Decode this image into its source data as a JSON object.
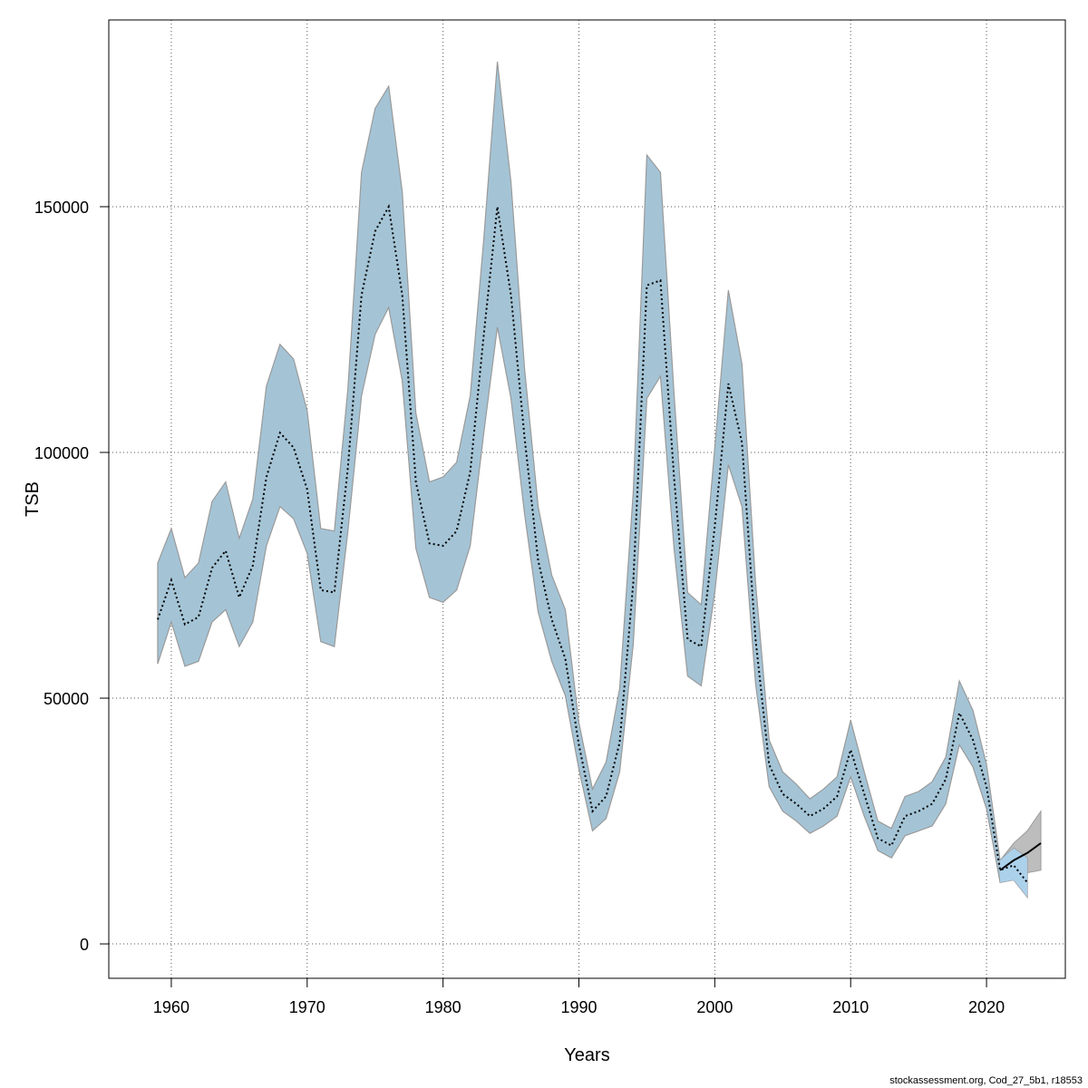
{
  "chart_data": {
    "type": "area",
    "xlabel": "Years",
    "ylabel": "TSB",
    "xlim": [
      1955.4,
      2025.8
    ],
    "ylim": [
      -7000,
      188000
    ],
    "xticks": [
      1960,
      1970,
      1980,
      1990,
      2000,
      2010,
      2020
    ],
    "yticks": [
      0,
      50000,
      100000,
      150000
    ],
    "ytick_labels": [
      "0",
      "50000",
      "100000",
      "150000"
    ],
    "grid": true,
    "colors": {
      "band_blue": "#a4c4d6",
      "band_grey": "#bdbdbd",
      "band_edge": "#9a9a9a",
      "line": "#000000",
      "light_blue": "#aed4ee"
    },
    "series": [
      {
        "x": [
          1959,
          1960,
          1961,
          1962,
          1963,
          1964,
          1965,
          1966,
          1967,
          1968,
          1969,
          1970,
          1971,
          1972,
          1973,
          1974,
          1975,
          1976,
          1977,
          1978,
          1979,
          1980,
          1981,
          1982,
          1983,
          1984,
          1985,
          1986,
          1987,
          1988,
          1989,
          1990,
          1991,
          1992,
          1993,
          1994,
          1995,
          1996,
          1997,
          1998,
          1999,
          2000,
          2001,
          2002,
          2003,
          2004,
          2005,
          2006,
          2007,
          2008,
          2009,
          2010,
          2011,
          2012,
          2013,
          2014,
          2015,
          2016,
          2017,
          2018,
          2019,
          2020,
          2021,
          2022,
          2023
        ],
        "estimate": [
          66000,
          74000,
          65000,
          66500,
          76500,
          80000,
          70500,
          77000,
          95000,
          104000,
          101000,
          92500,
          72000,
          71500,
          97000,
          132000,
          145000,
          150000,
          132000,
          94000,
          81500,
          81000,
          84000,
          96000,
          124000,
          150000,
          132000,
          103000,
          78000,
          66000,
          58000,
          40500,
          27000,
          30000,
          41000,
          73500,
          134000,
          135000,
          95000,
          62000,
          60500,
          85000,
          114000,
          102000,
          62000,
          36500,
          30500,
          28500,
          26000,
          27500,
          30000,
          39500,
          30500,
          21500,
          20000,
          26000,
          27000,
          28500,
          33500,
          47000,
          41500,
          32000,
          15000,
          16000,
          12500
        ],
        "upper": [
          77500,
          84500,
          74500,
          77500,
          90000,
          94000,
          82500,
          90500,
          113500,
          122000,
          119000,
          108500,
          84500,
          84000,
          113000,
          157000,
          170000,
          174500,
          153000,
          108000,
          94000,
          95000,
          98000,
          111500,
          143500,
          179500,
          155000,
          117000,
          89000,
          75000,
          68000,
          45000,
          31500,
          37000,
          52000,
          92000,
          160500,
          157000,
          112000,
          71500,
          69000,
          101000,
          133000,
          118000,
          73500,
          41500,
          35000,
          32500,
          29500,
          31500,
          34000,
          45500,
          35000,
          25000,
          23500,
          30000,
          31000,
          33000,
          38000,
          53500,
          47500,
          36500,
          17000,
          19500,
          17500
        ],
        "lower": [
          57000,
          65500,
          56500,
          57500,
          65500,
          68000,
          60500,
          65500,
          81000,
          89000,
          86500,
          79500,
          61500,
          60500,
          84000,
          111500,
          124000,
          129500,
          114500,
          80500,
          70500,
          69500,
          72000,
          81000,
          104000,
          125500,
          111000,
          87500,
          67500,
          57500,
          50500,
          35500,
          23000,
          25500,
          35000,
          61000,
          111000,
          115500,
          80500,
          54500,
          52500,
          71500,
          97500,
          89000,
          53000,
          32000,
          27000,
          25000,
          22500,
          24000,
          26000,
          34000,
          26000,
          19000,
          17500,
          22000,
          23000,
          24000,
          28500,
          40500,
          36000,
          27500,
          12500,
          13000,
          9500
        ]
      },
      {
        "x": [
          2021,
          2022,
          2023,
          2024
        ],
        "estimate": [
          15000,
          17000,
          18500,
          20500
        ],
        "upper": [
          17000,
          20500,
          23000,
          27000
        ],
        "lower": [
          12500,
          13500,
          14500,
          15000
        ]
      }
    ]
  },
  "credit_text": "stockassessment.org, Cod_27_5b1, r18553"
}
